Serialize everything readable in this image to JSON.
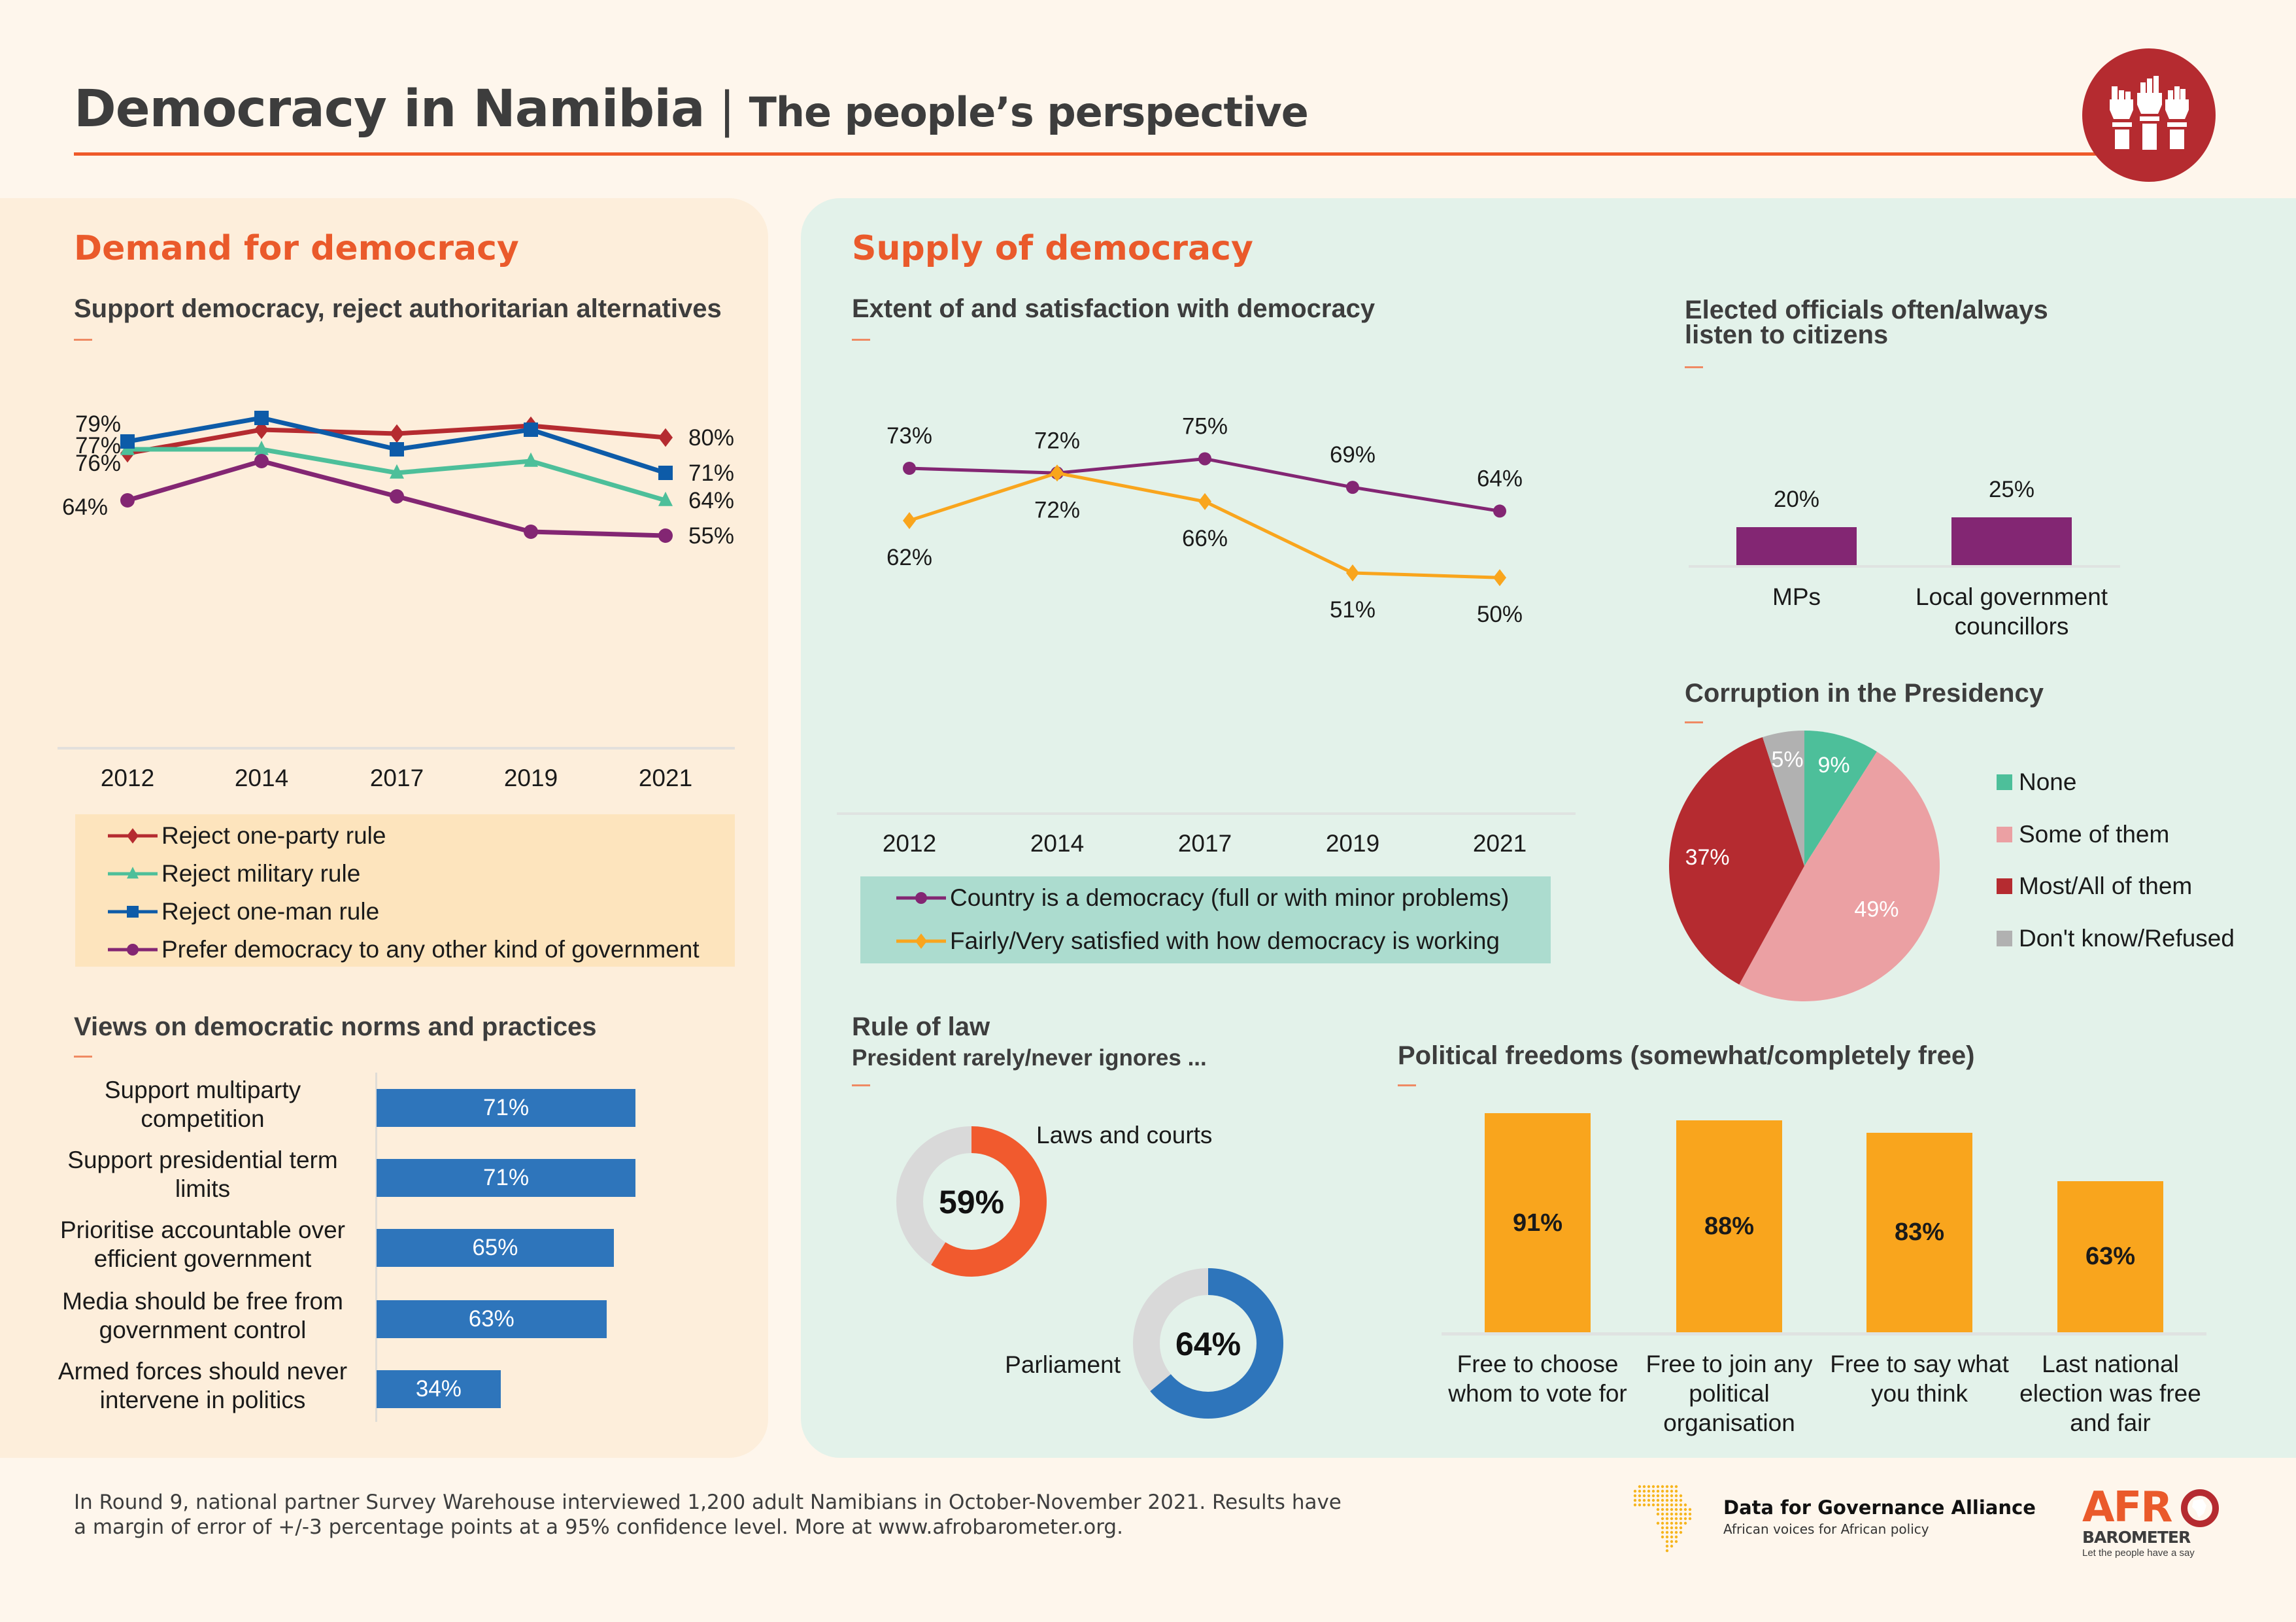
{
  "header": {
    "title": "Democracy in Namibia",
    "separator": "|",
    "subtitle": "The people’s perspective",
    "icon": "raised-fists-icon",
    "accent": "#ef5a2a",
    "icon_bg": "#b52b30"
  },
  "demand": {
    "section_title": "Demand for democracy",
    "support_chart_title": "Support democracy, reject authoritarian alternatives",
    "views_title": "Views on democratic norms and practices"
  },
  "supply": {
    "section_title": "Supply of democracy",
    "extent_title": "Extent of and satisfaction with democracy",
    "elected_title_line1": "Elected officials often/always",
    "elected_title_line2": "listen to citizens",
    "corruption_title": "Corruption in the Presidency",
    "rule_title": "Rule of law",
    "rule_subtitle": "President rarely/never ignores ...",
    "freedoms_title": "Political freedoms (somewhat/completely free)"
  },
  "chart_data": [
    {
      "id": "support_democracy",
      "type": "line",
      "title": "Support democracy, reject authoritarian alternatives",
      "categories": [
        "2012",
        "2014",
        "2017",
        "2019",
        "2021"
      ],
      "ylim": [
        0,
        100
      ],
      "grid": false,
      "legend": "bottom",
      "series": [
        {
          "name": "Reject one-party rule",
          "color": "#b52b30",
          "marker": "diamond",
          "values": [
            76,
            82,
            81,
            83,
            80
          ],
          "labels": {
            "0": "76%",
            "4": "80%"
          }
        },
        {
          "name": "Reject military rule",
          "color": "#4dbf9a",
          "marker": "triangle",
          "values": [
            77,
            77,
            71,
            74,
            64
          ],
          "labels": {
            "0": "77%",
            "4": "64%"
          }
        },
        {
          "name": "Reject one-man rule",
          "color": "#0d5ba8",
          "marker": "square",
          "values": [
            79,
            85,
            77,
            82,
            71
          ],
          "labels": {
            "0": "79%",
            "4": "71%"
          }
        },
        {
          "name": "Prefer democracy to any other kind of government",
          "color": "#832673",
          "marker": "circle",
          "values": [
            64,
            74,
            65,
            56,
            55
          ],
          "labels": {
            "0": "64%",
            "4": "55%"
          }
        }
      ]
    },
    {
      "id": "norms_practices",
      "type": "bar",
      "orientation": "horizontal",
      "title": "Views on democratic norms and practices",
      "categories": [
        [
          "Support multiparty",
          "competition"
        ],
        [
          "Support presidential term",
          "limits"
        ],
        [
          "Prioritise accountable over",
          "efficient government"
        ],
        [
          "Media should be free from",
          "government control"
        ],
        [
          "Armed forces should never",
          "intervene in politics"
        ]
      ],
      "values": [
        71,
        71,
        65,
        63,
        34
      ],
      "labels": [
        "71%",
        "71%",
        "65%",
        "63%",
        "34%"
      ],
      "color": "#2e75bb",
      "xlim": [
        0,
        100
      ]
    },
    {
      "id": "extent_satisfaction",
      "type": "line",
      "title": "Extent of and satisfaction with democracy",
      "categories": [
        "2012",
        "2014",
        "2017",
        "2019",
        "2021"
      ],
      "ylim": [
        0,
        100
      ],
      "grid": false,
      "legend": "bottom",
      "series": [
        {
          "name": "Country is a democracy (full or with minor problems)",
          "color": "#832673",
          "marker": "circle",
          "values": [
            73,
            72,
            75,
            69,
            64
          ],
          "labels": [
            "73%",
            "72%",
            "75%",
            "69%",
            "64%"
          ]
        },
        {
          "name": "Fairly/Very satisfied with how democracy is working",
          "color": "#f9a51d",
          "marker": "diamond",
          "values": [
            62,
            72,
            66,
            51,
            50
          ],
          "labels": [
            "62%",
            "72%",
            "66%",
            "51%",
            "50%"
          ]
        }
      ]
    },
    {
      "id": "elected_officials",
      "type": "bar",
      "title": "Elected officials often/always listen to citizens",
      "categories": [
        [
          "MPs"
        ],
        [
          "Local government",
          "councillors"
        ]
      ],
      "values": [
        20,
        25
      ],
      "labels": [
        "20%",
        "25%"
      ],
      "color": "#832673",
      "ylim": [
        0,
        100
      ]
    },
    {
      "id": "corruption_presidency",
      "type": "pie",
      "title": "Corruption in the Presidency",
      "legend": "right",
      "slices": [
        {
          "name": "None",
          "value": 9,
          "label": "9%",
          "color": "#4dbf9a"
        },
        {
          "name": "Some of them",
          "value": 49,
          "label": "49%",
          "color": "#eba0a3"
        },
        {
          "name": "Most/All of them",
          "value": 37,
          "label": "37%",
          "color": "#b52b30"
        },
        {
          "name": "Don't know/Refused",
          "value": 5,
          "label": "5%",
          "color": "#b1b1b1"
        }
      ]
    },
    {
      "id": "rule_of_law",
      "type": "pie",
      "subtype": "donut",
      "title": "Rule of law",
      "subtitle": "President rarely/never ignores ...",
      "items": [
        {
          "name": "Laws and courts",
          "value": 59,
          "label": "59%",
          "color": "#f15a2e"
        },
        {
          "name": "Parliament",
          "value": 64,
          "label": "64%",
          "color": "#2e75bb"
        }
      ],
      "remainder_color": "#d9d9d9"
    },
    {
      "id": "political_freedoms",
      "type": "bar",
      "title": "Political freedoms (somewhat/completely free)",
      "categories": [
        [
          "Free to choose",
          "whom to vote for"
        ],
        [
          "Free to join any",
          "political",
          "organisation"
        ],
        [
          "Free to say what",
          "you think"
        ],
        [
          "Last national",
          "election was free",
          "and fair"
        ]
      ],
      "values": [
        91,
        88,
        83,
        63
      ],
      "labels": [
        "91%",
        "88%",
        "83%",
        "63%"
      ],
      "color": "#f9a51d",
      "ylim": [
        0,
        100
      ]
    }
  ],
  "footer": {
    "line1": "In Round 9, national partner Survey Warehouse interviewed 1,200 adult Namibians in October-November 2021. Results have",
    "line2": "a margin of error of +/-3 percentage points at a 95% confidence level. More at www.afrobarometer.org.",
    "dga_name": "Data for Governance Alliance",
    "dga_tagline": "African voices for African policy",
    "afro_top": "AFR",
    "afro_bottom": "BAROMETER",
    "afro_tagline": "Let the people have a say"
  }
}
